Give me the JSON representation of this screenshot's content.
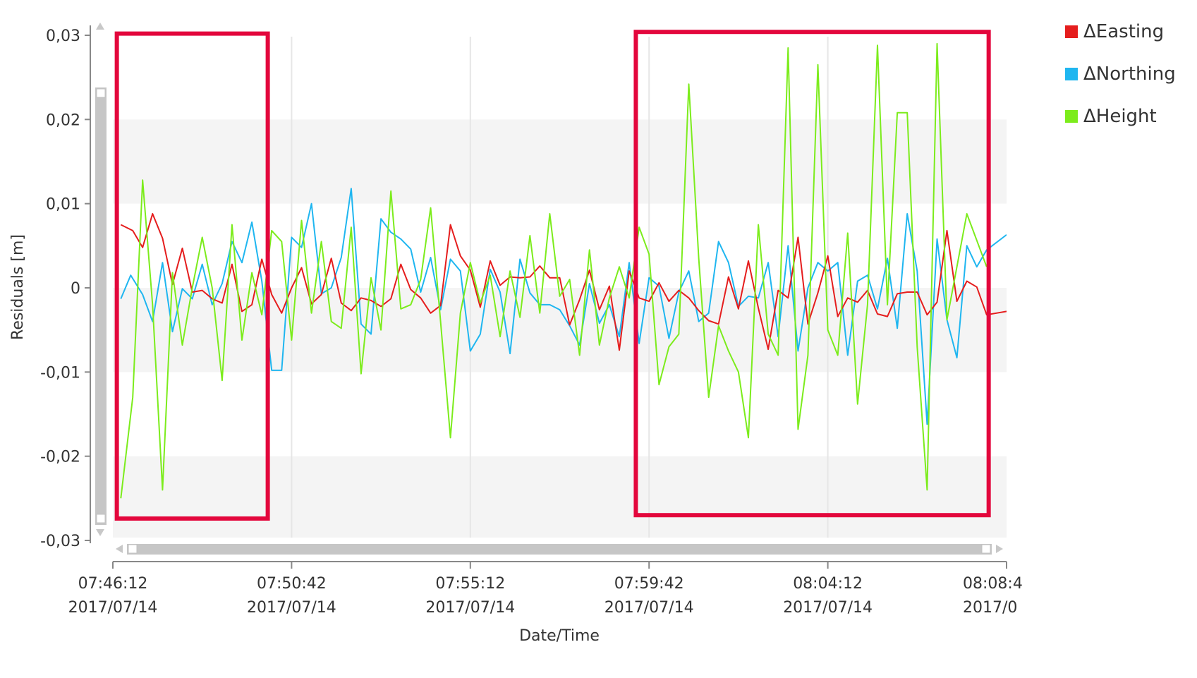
{
  "chart_data": {
    "type": "line",
    "title": "",
    "xlabel": "Date/Time",
    "ylabel": "Residuals [m]",
    "ylim": [
      -0.03,
      0.03
    ],
    "y_ticks": [
      {
        "value": 0.03,
        "label": "0,03"
      },
      {
        "value": 0.02,
        "label": "0,02"
      },
      {
        "value": 0.01,
        "label": "0,01"
      },
      {
        "value": 0,
        "label": "0"
      },
      {
        "value": -0.01,
        "label": "-0,01"
      },
      {
        "value": -0.02,
        "label": "-0,02"
      },
      {
        "value": -0.03,
        "label": "-0,03"
      }
    ],
    "x_range": [
      "2017/07/14 07:46:12",
      "2017/07/14 08:08:42"
    ],
    "x_ticks": [
      {
        "time": "07:46:12",
        "date": "2017/07/14"
      },
      {
        "time": "07:50:42",
        "date": "2017/07/14"
      },
      {
        "time": "07:55:12",
        "date": "2017/07/14"
      },
      {
        "time": "07:59:42",
        "date": "2017/07/14"
      },
      {
        "time": "08:04:12",
        "date": "2017/07/14"
      },
      {
        "time": "08:08:4",
        "date": "2017/0"
      }
    ],
    "grid": true,
    "legend_position": "top-right",
    "series": [
      {
        "name": "ΔEasting",
        "color": "#e51d1d",
        "points": [
          [
            "07:46:24",
            0.0075
          ],
          [
            "07:46:42",
            0.0068
          ],
          [
            "07:46:57",
            0.0048
          ],
          [
            "07:47:12",
            0.0088
          ],
          [
            "07:47:27",
            0.0059
          ],
          [
            "07:47:42",
            0.0004
          ],
          [
            "07:47:57",
            0.0047
          ],
          [
            "07:48:12",
            -0.0005
          ],
          [
            "07:48:27",
            -0.0003
          ],
          [
            "07:48:42",
            -0.0013
          ],
          [
            "07:48:57",
            -0.0018
          ],
          [
            "07:49:12",
            0.0028
          ],
          [
            "07:49:27",
            -0.0028
          ],
          [
            "07:49:42",
            -0.002
          ],
          [
            "07:49:57",
            0.0034
          ],
          [
            "07:50:12",
            -0.0008
          ],
          [
            "07:50:27",
            -0.003
          ],
          [
            "07:50:42",
            0.0
          ],
          [
            "07:50:57",
            0.0024
          ],
          [
            "07:51:12",
            -0.0019
          ],
          [
            "07:51:27",
            -0.0008
          ],
          [
            "07:51:42",
            0.0035
          ],
          [
            "07:51:57",
            -0.0018
          ],
          [
            "07:52:12",
            -0.0027
          ],
          [
            "07:52:27",
            -0.0012
          ],
          [
            "07:52:42",
            -0.0015
          ],
          [
            "07:52:57",
            -0.0022
          ],
          [
            "07:53:12",
            -0.0013
          ],
          [
            "07:53:27",
            0.0028
          ],
          [
            "07:53:42",
            -0.0002
          ],
          [
            "07:53:57",
            -0.0012
          ],
          [
            "07:54:12",
            -0.003
          ],
          [
            "07:54:27",
            -0.0021
          ],
          [
            "07:54:42",
            0.0075
          ],
          [
            "07:54:57",
            0.0038
          ],
          [
            "07:55:12",
            0.0021
          ],
          [
            "07:55:27",
            -0.0023
          ],
          [
            "07:55:42",
            0.0032
          ],
          [
            "07:55:57",
            0.0003
          ],
          [
            "07:56:12",
            0.0013
          ],
          [
            "07:56:27",
            0.0012
          ],
          [
            "07:56:42",
            0.0013
          ],
          [
            "07:56:57",
            0.0026
          ],
          [
            "07:57:12",
            0.0012
          ],
          [
            "07:57:27",
            0.0012
          ],
          [
            "07:57:42",
            -0.0044
          ],
          [
            "07:57:57",
            -0.0014
          ],
          [
            "07:58:12",
            0.0021
          ],
          [
            "07:58:27",
            -0.0026
          ],
          [
            "07:58:42",
            0.0002
          ],
          [
            "07:58:57",
            -0.0074
          ],
          [
            "07:59:12",
            0.002
          ],
          [
            "07:59:27",
            -0.0012
          ],
          [
            "07:59:42",
            -0.0016
          ],
          [
            "07:59:57",
            0.0006
          ],
          [
            "08:00:12",
            -0.0016
          ],
          [
            "08:00:27",
            -0.0003
          ],
          [
            "08:00:42",
            -0.0012
          ],
          [
            "08:00:57",
            -0.0027
          ],
          [
            "08:01:12",
            -0.0039
          ],
          [
            "08:01:27",
            -0.0043
          ],
          [
            "08:01:42",
            0.0013
          ],
          [
            "08:01:57",
            -0.0025
          ],
          [
            "08:02:12",
            0.0032
          ],
          [
            "08:02:27",
            -0.0024
          ],
          [
            "08:02:42",
            -0.0073
          ],
          [
            "08:02:57",
            -0.0003
          ],
          [
            "08:03:12",
            -0.0012
          ],
          [
            "08:03:27",
            0.006
          ],
          [
            "08:03:42",
            -0.0043
          ],
          [
            "08:03:57",
            -0.0006
          ],
          [
            "08:04:12",
            0.0038
          ],
          [
            "08:04:27",
            -0.0034
          ],
          [
            "08:04:42",
            -0.0012
          ],
          [
            "08:04:57",
            -0.0017
          ],
          [
            "08:05:12",
            -0.0003
          ],
          [
            "08:05:27",
            -0.0031
          ],
          [
            "08:05:42",
            -0.0034
          ],
          [
            "08:05:57",
            -0.0007
          ],
          [
            "08:06:12",
            -0.0005
          ],
          [
            "08:06:27",
            -0.0005
          ],
          [
            "08:06:42",
            -0.0032
          ],
          [
            "08:06:57",
            -0.0017
          ],
          [
            "08:07:12",
            0.0068
          ],
          [
            "08:07:27",
            -0.0016
          ],
          [
            "08:07:42",
            0.0008
          ],
          [
            "08:07:57",
            0.0001
          ],
          [
            "08:08:12",
            -0.0032
          ],
          [
            "08:08:42",
            -0.0028
          ]
        ]
      },
      {
        "name": "ΔNorthing",
        "color": "#1fb6f0",
        "points": [
          [
            "07:46:24",
            -0.0013
          ],
          [
            "07:46:39",
            0.0015
          ],
          [
            "07:46:57",
            -0.0008
          ],
          [
            "07:47:12",
            -0.004
          ],
          [
            "07:47:27",
            0.003
          ],
          [
            "07:47:42",
            -0.0052
          ],
          [
            "07:47:57",
            -0.0001
          ],
          [
            "07:48:12",
            -0.0013
          ],
          [
            "07:48:27",
            0.0028
          ],
          [
            "07:48:42",
            -0.002
          ],
          [
            "07:48:57",
            0.0005
          ],
          [
            "07:49:12",
            0.0055
          ],
          [
            "07:49:27",
            0.003
          ],
          [
            "07:49:42",
            0.0078
          ],
          [
            "07:49:57",
            0.0008
          ],
          [
            "07:50:12",
            -0.0098
          ],
          [
            "07:50:27",
            -0.0098
          ],
          [
            "07:50:42",
            0.006
          ],
          [
            "07:50:57",
            0.0048
          ],
          [
            "07:51:12",
            0.01
          ],
          [
            "07:51:27",
            -0.0007
          ],
          [
            "07:51:42",
            0.0
          ],
          [
            "07:51:57",
            0.0036
          ],
          [
            "07:52:12",
            0.0118
          ],
          [
            "07:52:27",
            -0.0043
          ],
          [
            "07:52:42",
            -0.0055
          ],
          [
            "07:52:57",
            0.0082
          ],
          [
            "07:53:12",
            0.0066
          ],
          [
            "07:53:27",
            0.0058
          ],
          [
            "07:53:42",
            0.0046
          ],
          [
            "07:53:57",
            -0.0005
          ],
          [
            "07:54:12",
            0.0036
          ],
          [
            "07:54:27",
            -0.0026
          ],
          [
            "07:54:42",
            0.0034
          ],
          [
            "07:54:57",
            0.002
          ],
          [
            "07:55:12",
            -0.0075
          ],
          [
            "07:55:27",
            -0.0055
          ],
          [
            "07:55:42",
            0.0022
          ],
          [
            "07:55:57",
            -0.0005
          ],
          [
            "07:56:12",
            -0.0078
          ],
          [
            "07:56:27",
            0.0034
          ],
          [
            "07:56:42",
            -0.0006
          ],
          [
            "07:56:57",
            -0.002
          ],
          [
            "07:57:12",
            -0.002
          ],
          [
            "07:57:27",
            -0.0026
          ],
          [
            "07:57:42",
            -0.0045
          ],
          [
            "07:57:57",
            -0.0068
          ],
          [
            "07:58:12",
            0.0005
          ],
          [
            "07:58:27",
            -0.0042
          ],
          [
            "07:58:42",
            -0.002
          ],
          [
            "07:58:57",
            -0.0058
          ],
          [
            "07:59:12",
            0.003
          ],
          [
            "07:59:27",
            -0.0066
          ],
          [
            "07:59:42",
            0.0012
          ],
          [
            "07:59:57",
            0.0002
          ],
          [
            "08:00:12",
            -0.006
          ],
          [
            "08:00:27",
            -0.0005
          ],
          [
            "08:00:42",
            0.002
          ],
          [
            "08:00:57",
            -0.004
          ],
          [
            "08:01:12",
            -0.003
          ],
          [
            "08:01:27",
            0.0055
          ],
          [
            "08:01:42",
            0.003
          ],
          [
            "08:01:57",
            -0.0022
          ],
          [
            "08:02:12",
            -0.001
          ],
          [
            "08:02:27",
            -0.0012
          ],
          [
            "08:02:42",
            0.003
          ],
          [
            "08:02:57",
            -0.0058
          ],
          [
            "08:03:12",
            0.005
          ],
          [
            "08:03:27",
            -0.0075
          ],
          [
            "08:03:42",
            0.0
          ],
          [
            "08:03:57",
            0.003
          ],
          [
            "08:04:12",
            0.002
          ],
          [
            "08:04:27",
            0.003
          ],
          [
            "08:04:42",
            -0.008
          ],
          [
            "08:04:57",
            0.0008
          ],
          [
            "08:05:12",
            0.0015
          ],
          [
            "08:05:27",
            -0.0025
          ],
          [
            "08:05:42",
            0.0035
          ],
          [
            "08:05:57",
            -0.0048
          ],
          [
            "08:06:12",
            0.0088
          ],
          [
            "08:06:27",
            0.002
          ],
          [
            "08:06:42",
            -0.0162
          ],
          [
            "08:06:57",
            0.0058
          ],
          [
            "08:07:12",
            -0.0038
          ],
          [
            "08:07:27",
            -0.0083
          ],
          [
            "08:07:42",
            0.005
          ],
          [
            "08:07:57",
            0.0025
          ],
          [
            "08:08:12",
            0.0045
          ],
          [
            "08:08:42",
            0.0063
          ]
        ]
      },
      {
        "name": "ΔHeight",
        "color": "#7cec1c",
        "points": [
          [
            "07:46:24",
            -0.025
          ],
          [
            "07:46:42",
            -0.013
          ],
          [
            "07:46:57",
            0.0128
          ],
          [
            "07:47:12",
            -0.002
          ],
          [
            "07:47:27",
            -0.024
          ],
          [
            "07:47:42",
            0.0018
          ],
          [
            "07:47:57",
            -0.0068
          ],
          [
            "07:48:12",
            0.0
          ],
          [
            "07:48:27",
            0.006
          ],
          [
            "07:48:42",
            0.0
          ],
          [
            "07:48:57",
            -0.011
          ],
          [
            "07:49:12",
            0.0075
          ],
          [
            "07:49:27",
            -0.0062
          ],
          [
            "07:49:42",
            0.0018
          ],
          [
            "07:49:57",
            -0.0032
          ],
          [
            "07:50:12",
            0.0068
          ],
          [
            "07:50:27",
            0.0055
          ],
          [
            "07:50:42",
            -0.0062
          ],
          [
            "07:50:57",
            0.008
          ],
          [
            "07:51:12",
            -0.003
          ],
          [
            "07:51:27",
            0.0055
          ],
          [
            "07:51:42",
            -0.004
          ],
          [
            "07:51:57",
            -0.0048
          ],
          [
            "07:52:12",
            0.0072
          ],
          [
            "07:52:27",
            -0.0102
          ],
          [
            "07:52:42",
            0.0012
          ],
          [
            "07:52:57",
            -0.005
          ],
          [
            "07:53:12",
            0.0115
          ],
          [
            "07:53:27",
            -0.0025
          ],
          [
            "07:53:42",
            -0.002
          ],
          [
            "07:53:57",
            0.001
          ],
          [
            "07:54:12",
            0.0095
          ],
          [
            "07:54:27",
            -0.004
          ],
          [
            "07:54:42",
            -0.0178
          ],
          [
            "07:54:57",
            -0.003
          ],
          [
            "07:55:12",
            0.003
          ],
          [
            "07:55:27",
            -0.0018
          ],
          [
            "07:55:42",
            0.0015
          ],
          [
            "07:55:57",
            -0.0058
          ],
          [
            "07:56:12",
            0.002
          ],
          [
            "07:56:27",
            -0.0035
          ],
          [
            "07:56:42",
            0.0062
          ],
          [
            "07:56:57",
            -0.003
          ],
          [
            "07:57:12",
            0.0088
          ],
          [
            "07:57:27",
            -0.001
          ],
          [
            "07:57:42",
            0.001
          ],
          [
            "07:57:57",
            -0.008
          ],
          [
            "07:58:12",
            0.0045
          ],
          [
            "07:58:27",
            -0.0068
          ],
          [
            "07:58:42",
            -0.0012
          ],
          [
            "07:58:57",
            0.0025
          ],
          [
            "07:59:12",
            -0.0012
          ],
          [
            "07:59:27",
            0.0072
          ],
          [
            "07:59:42",
            0.004
          ],
          [
            "07:59:57",
            -0.0115
          ],
          [
            "08:00:12",
            -0.007
          ],
          [
            "08:00:27",
            -0.0055
          ],
          [
            "08:00:42",
            0.0242
          ],
          [
            "08:00:57",
            0.0035
          ],
          [
            "08:01:12",
            -0.013
          ],
          [
            "08:01:27",
            -0.0045
          ],
          [
            "08:01:42",
            -0.0075
          ],
          [
            "08:01:57",
            -0.01
          ],
          [
            "08:02:12",
            -0.0178
          ],
          [
            "08:02:27",
            0.0075
          ],
          [
            "08:02:42",
            -0.0055
          ],
          [
            "08:02:57",
            -0.008
          ],
          [
            "08:03:12",
            0.0285
          ],
          [
            "08:03:27",
            -0.0168
          ],
          [
            "08:03:42",
            -0.008
          ],
          [
            "08:03:57",
            0.0265
          ],
          [
            "08:04:12",
            -0.005
          ],
          [
            "08:04:27",
            -0.008
          ],
          [
            "08:04:42",
            0.0065
          ],
          [
            "08:04:57",
            -0.0138
          ],
          [
            "08:05:12",
            -0.002
          ],
          [
            "08:05:27",
            0.0288
          ],
          [
            "08:05:42",
            -0.002
          ],
          [
            "08:05:57",
            0.0208
          ],
          [
            "08:06:12",
            0.0208
          ],
          [
            "08:06:27",
            -0.007
          ],
          [
            "08:06:42",
            -0.024
          ],
          [
            "08:06:57",
            0.029
          ],
          [
            "08:07:12",
            -0.0038
          ],
          [
            "08:07:27",
            0.0025
          ],
          [
            "08:07:42",
            0.0088
          ],
          [
            "08:08:12",
            0.0025
          ]
        ]
      }
    ],
    "highlight_boxes": [
      {
        "x0": "07:46:18",
        "x1": "07:50:06",
        "y0": 0.0302,
        "y1": -0.0274,
        "color": "#e3063c"
      },
      {
        "x0": "07:59:22",
        "x1": "08:08:15",
        "y0": 0.0304,
        "y1": -0.027,
        "color": "#e3063c"
      }
    ]
  }
}
